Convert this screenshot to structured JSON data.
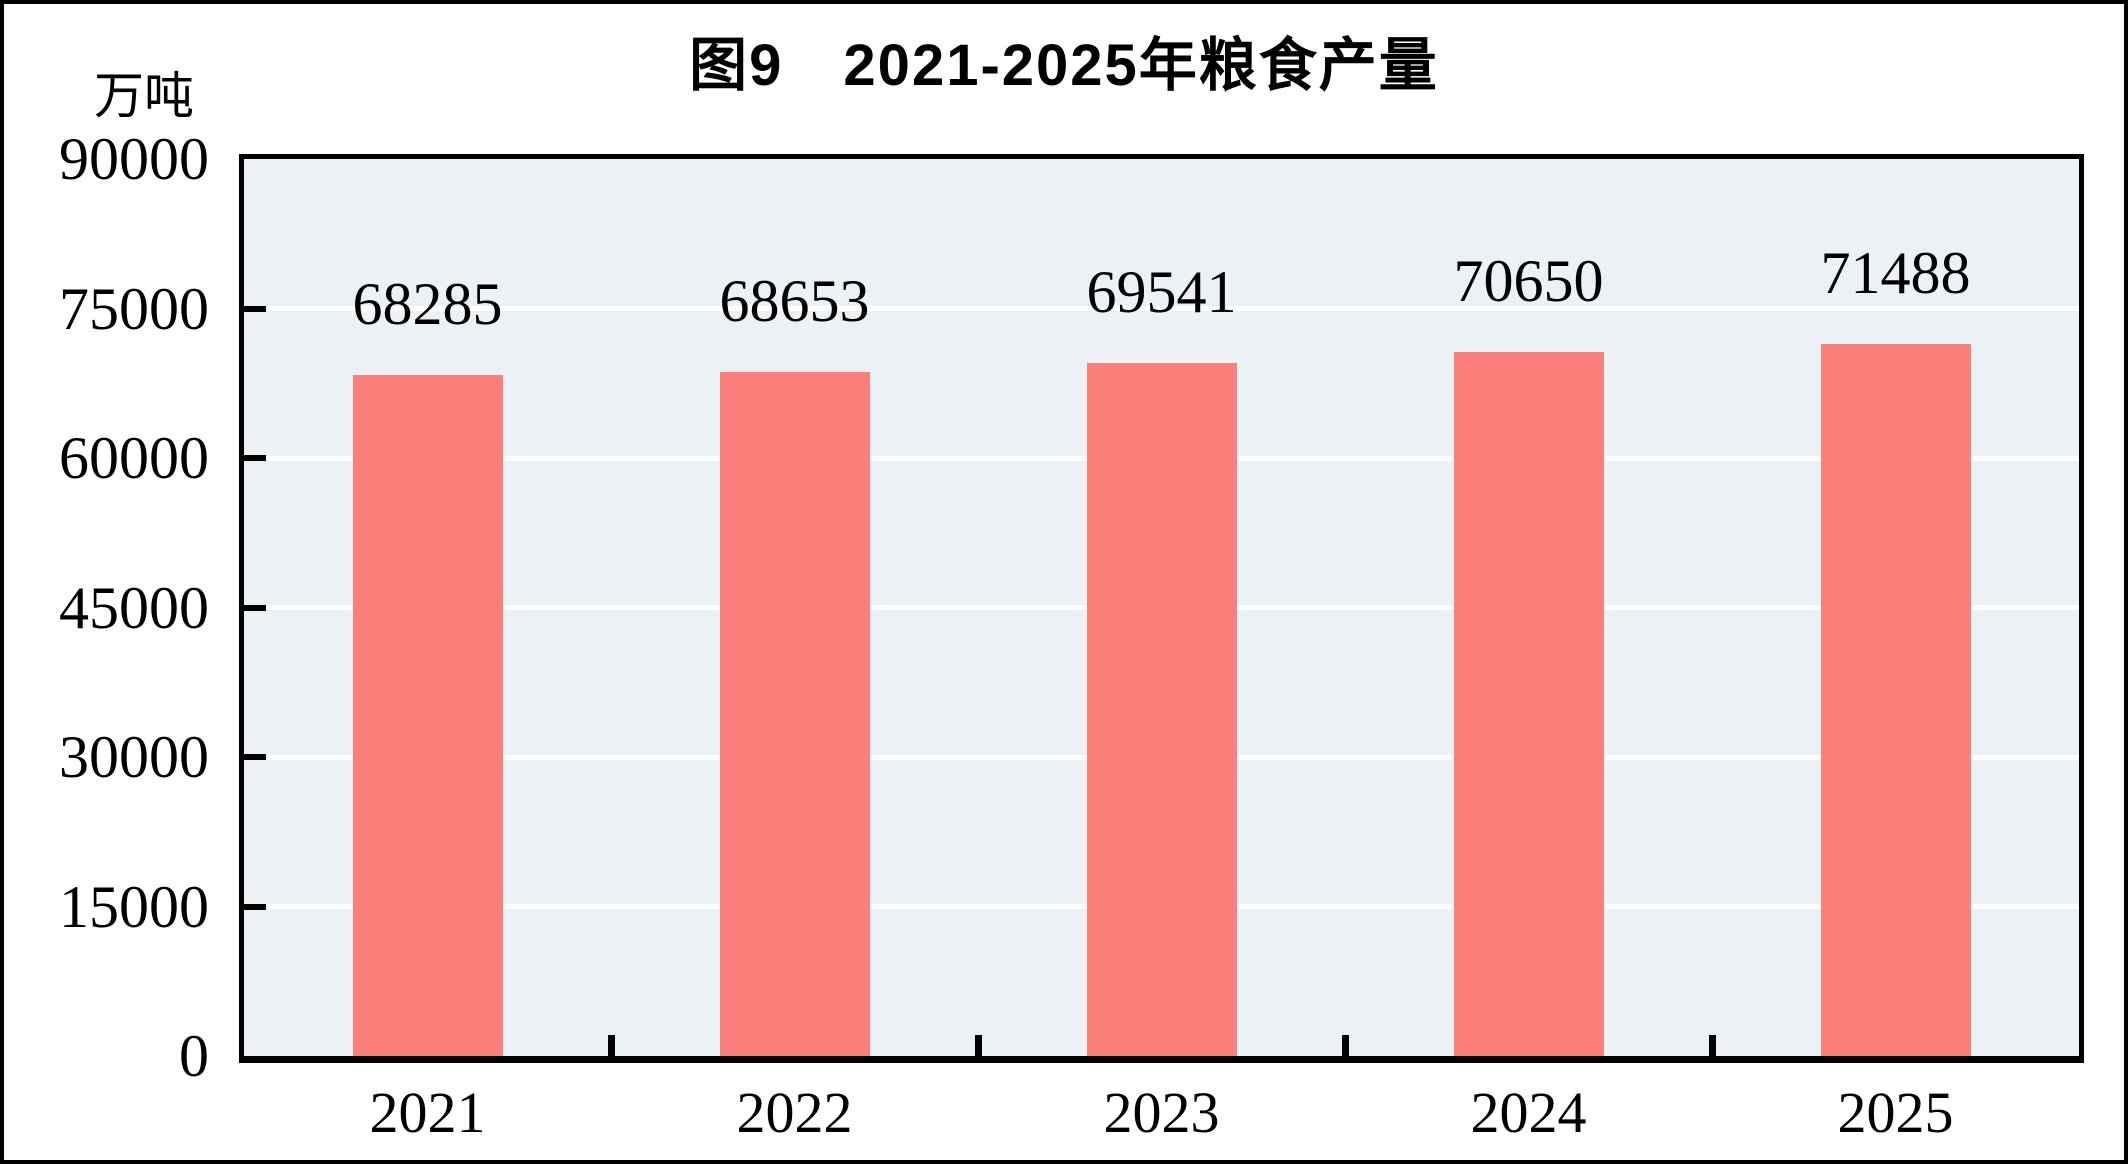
{
  "page": {
    "background": "#ffffff",
    "outer_border_color": "#000000"
  },
  "chart": {
    "title": "图9　2021-2025年粮食产量",
    "unit_label": "万吨",
    "colors": {
      "bar": "#FB807B",
      "plot_background": "#EBF1F5",
      "gridline": "#FFFFFF",
      "axis": "#000000",
      "text": "#000000"
    }
  },
  "chart_data": {
    "type": "bar",
    "title": "图9　2021-2025年粮食产量",
    "categories": [
      "2021",
      "2022",
      "2023",
      "2024",
      "2025"
    ],
    "values": [
      68285,
      68653,
      69541,
      70650,
      71488
    ],
    "data_labels": [
      68285,
      68653,
      69541,
      70650,
      71488
    ],
    "xlabel": "",
    "ylabel": "万吨",
    "ylim": [
      0,
      90000
    ],
    "yticks": [
      0,
      15000,
      30000,
      45000,
      60000,
      75000,
      90000
    ],
    "grid": true,
    "legend": false,
    "bar_color": "#FB807B",
    "plot_background": "#EBF1F5",
    "gridline_color": "#FFFFFF"
  }
}
